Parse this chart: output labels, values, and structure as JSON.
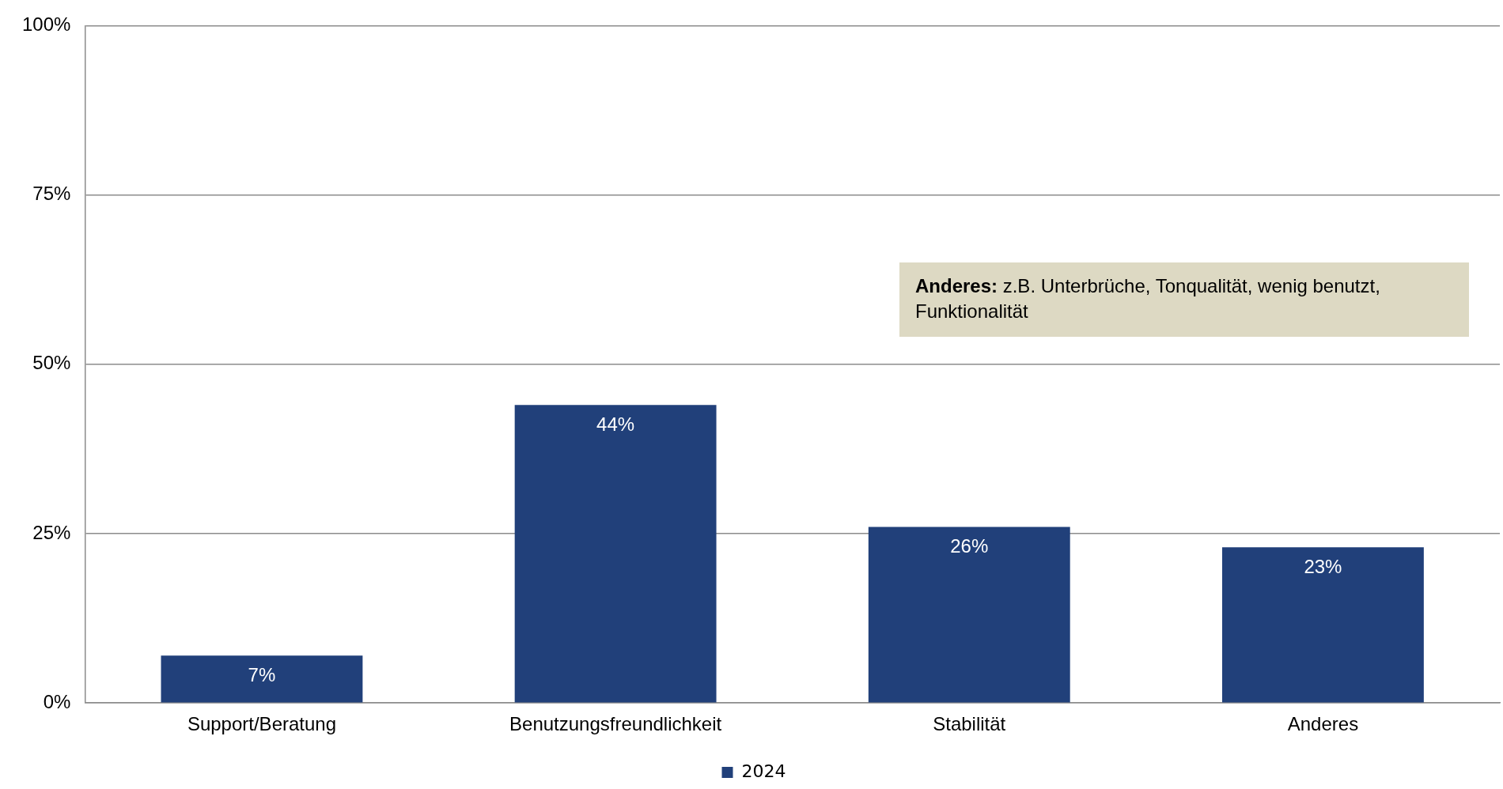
{
  "chart_data": {
    "type": "bar",
    "categories": [
      "Support/Beratung",
      "Benutzungsfreundlichkeit",
      "Stabilität",
      "Anderes"
    ],
    "series": [
      {
        "name": "2024",
        "color": "#21407a",
        "values": [
          7,
          44,
          26,
          23
        ]
      }
    ],
    "ylim": [
      0,
      100
    ],
    "yticks": [
      {
        "value": 0,
        "label": "0%"
      },
      {
        "value": 25,
        "label": "25%"
      },
      {
        "value": 50,
        "label": "50%"
      },
      {
        "value": 75,
        "label": "75%"
      },
      {
        "value": 100,
        "label": "100%"
      }
    ],
    "value_labels": [
      "7%",
      "44%",
      "26%",
      "23%"
    ],
    "annotations": [
      "Anderes: z.B. Unterbrüche, Tonqualität, wenig benutzt, Funktionalität"
    ],
    "grid": "y",
    "legend": "bottom"
  }
}
